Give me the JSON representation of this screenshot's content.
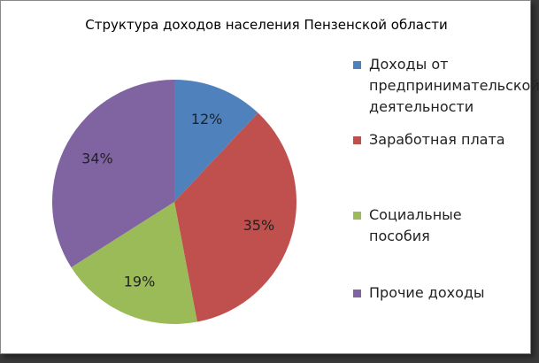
{
  "chart_data": {
    "type": "pie",
    "title": "Структура доходов населения Пензенской области",
    "categories": [
      "Доходы от предпринимательской деятельности",
      "Заработная плата",
      "Социальные пособия",
      "Прочие доходы"
    ],
    "values": [
      12,
      35,
      19,
      34
    ],
    "value_labels": [
      "12%",
      "35%",
      "19%",
      "34%"
    ],
    "colors": [
      "#4f81bd",
      "#c0504d",
      "#9bbb59",
      "#8064a2"
    ],
    "legend": "right"
  }
}
